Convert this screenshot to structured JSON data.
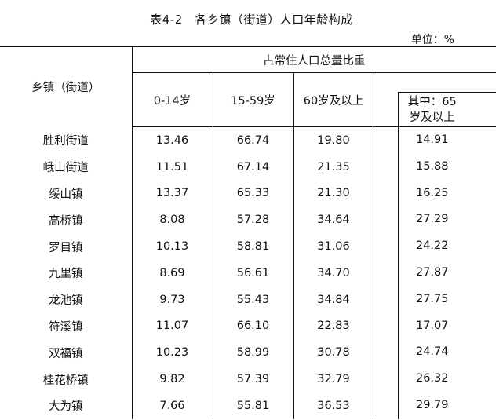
{
  "title": "表4-2　各乡镇（街道）人口年龄构成",
  "unit": "单位：%",
  "header": {
    "row_label": "乡镇（街道）",
    "group_label": "占常住人口总量比重",
    "columns": [
      "0-14岁",
      "15-59岁",
      "60岁及以上"
    ],
    "sub_column_line1": "其中：65",
    "sub_column_line2": "岁及以上"
  },
  "rows": [
    {
      "name": "胜利街道",
      "a": "13.46",
      "b": "66.74",
      "c": "19.80",
      "d": "14.91"
    },
    {
      "name": "峨山街道",
      "a": "11.51",
      "b": "67.14",
      "c": "21.35",
      "d": "15.88"
    },
    {
      "name": "绥山镇",
      "a": "13.37",
      "b": "65.33",
      "c": "21.30",
      "d": "16.25"
    },
    {
      "name": "高桥镇",
      "a": "8.08",
      "b": "57.28",
      "c": "34.64",
      "d": "27.29"
    },
    {
      "name": "罗目镇",
      "a": "10.13",
      "b": "58.81",
      "c": "31.06",
      "d": "24.22"
    },
    {
      "name": "九里镇",
      "a": "8.69",
      "b": "56.61",
      "c": "34.70",
      "d": "27.87"
    },
    {
      "name": "龙池镇",
      "a": "9.73",
      "b": "55.43",
      "c": "34.84",
      "d": "27.75"
    },
    {
      "name": "符溪镇",
      "a": "11.07",
      "b": "66.10",
      "c": "22.83",
      "d": "17.07"
    },
    {
      "name": "双福镇",
      "a": "10.23",
      "b": "58.99",
      "c": "30.78",
      "d": "24.74"
    },
    {
      "name": "桂花桥镇",
      "a": "9.82",
      "b": "57.39",
      "c": "32.79",
      "d": "26.32"
    },
    {
      "name": "大为镇",
      "a": "7.66",
      "b": "55.81",
      "c": "36.53",
      "d": "29.79"
    }
  ]
}
